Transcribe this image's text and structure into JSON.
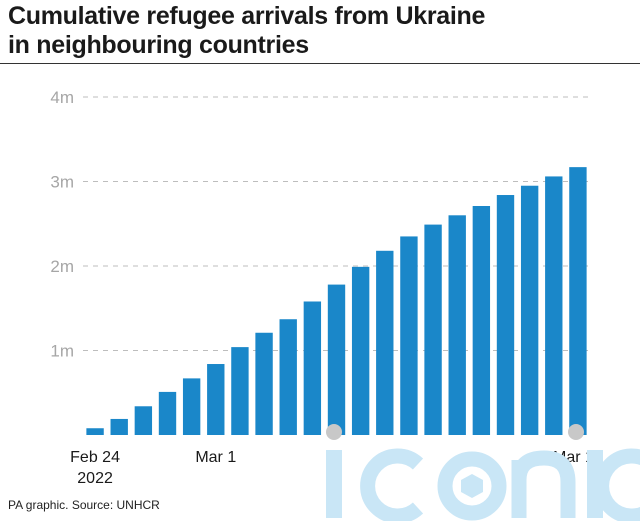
{
  "title_line1": "Cumulative refugee arrivals from Ukraine",
  "title_line2": "in neighbouring countries",
  "source": "PA graphic. Source: UNHCR",
  "watermark_text": "iconic",
  "colors": {
    "bar": "#1a87c9",
    "grid": "#bdbdbd",
    "tick_text": "#a6a6a6",
    "axis_text": "#1a1a1a",
    "watermark": "#c9e6f6"
  },
  "chart_data": {
    "type": "bar",
    "title": "Cumulative refugee arrivals from Ukraine in neighbouring countries",
    "categories": [
      "Feb 24 2022",
      "Feb 25",
      "Feb 26",
      "Feb 27",
      "Feb 28",
      "Mar 1",
      "Mar 2",
      "Mar 3",
      "Mar 4",
      "Mar 5",
      "Mar 6",
      "Mar 7",
      "Mar 8",
      "Mar 9",
      "Mar 10",
      "Mar 11",
      "Mar 12",
      "Mar 13",
      "Mar 14",
      "Mar 15",
      "Mar 16"
    ],
    "values": [
      0.08,
      0.19,
      0.34,
      0.51,
      0.67,
      0.84,
      1.04,
      1.21,
      1.37,
      1.58,
      1.78,
      1.99,
      2.18,
      2.35,
      2.49,
      2.6,
      2.71,
      2.84,
      2.95,
      3.06,
      3.17
    ],
    "y_ticks": [
      1,
      2,
      3,
      4
    ],
    "y_tick_labels": [
      "1m",
      "2m",
      "3m",
      "4m"
    ],
    "ylim": [
      0,
      4
    ],
    "x_labels": [
      {
        "index": 0,
        "lines": [
          "Feb 24",
          "2022"
        ]
      },
      {
        "index": 5,
        "lines": [
          "Mar 1"
        ]
      },
      {
        "index": 20,
        "lines": [
          "Mar 16"
        ]
      }
    ],
    "grid": true,
    "xlabel": "",
    "ylabel": ""
  }
}
